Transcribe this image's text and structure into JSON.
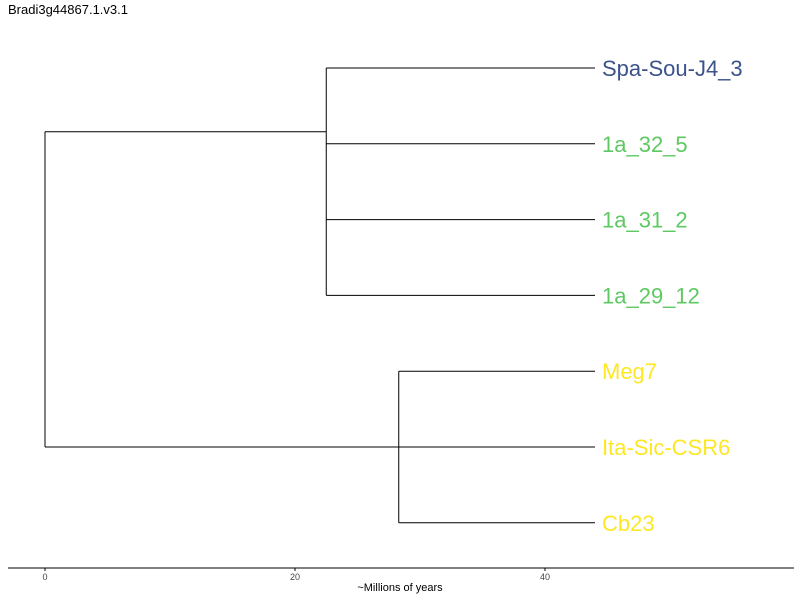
{
  "chart_data": {
    "type": "tree",
    "title": "Bradi3g44867.1.v3.1",
    "xlabel": "~Millions of years",
    "xlim": [
      0,
      60
    ],
    "xticks": [
      0,
      20,
      40
    ],
    "tips": [
      {
        "name": "Spa-Sou-J4_3",
        "color": "#3b528b",
        "age": 44
      },
      {
        "name": "1a_32_5",
        "color": "#5ec962",
        "age": 44
      },
      {
        "name": "1a_31_2",
        "color": "#5ec962",
        "age": 44
      },
      {
        "name": "1a_29_12",
        "color": "#5ec962",
        "age": 44
      },
      {
        "name": "Meg7",
        "color": "#fde725",
        "age": 44
      },
      {
        "name": "Ita-Sic-CSR6",
        "color": "#fde725",
        "age": 44
      },
      {
        "name": "Cb23",
        "color": "#fde725",
        "age": 44
      }
    ],
    "clades": [
      {
        "node_age": 22.5,
        "tips": [
          0,
          1,
          2,
          3
        ]
      },
      {
        "node_age": 28.3,
        "tips": [
          4,
          5,
          6
        ]
      }
    ],
    "root_age": 0
  }
}
